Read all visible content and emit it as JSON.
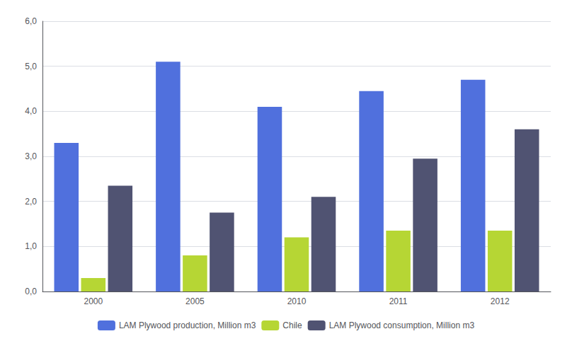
{
  "chart_data": {
    "type": "bar",
    "categories": [
      "2000",
      "2005",
      "2010",
      "2011",
      "2012"
    ],
    "series": [
      {
        "name": "LAM Plywood production, Million m3",
        "values": [
          3.3,
          5.1,
          4.1,
          4.45,
          4.7
        ]
      },
      {
        "name": "Chile",
        "values": [
          0.3,
          0.8,
          1.2,
          1.35,
          1.35
        ]
      },
      {
        "name": "LAM Plywood consumption, Million m3",
        "values": [
          2.35,
          1.75,
          2.1,
          2.95,
          3.6
        ]
      }
    ],
    "ylim": [
      0,
      6.0
    ],
    "yticks": [
      {
        "value": 0.0,
        "label": "0,0"
      },
      {
        "value": 1.0,
        "label": "1,0"
      },
      {
        "value": 2.0,
        "label": "2,0"
      },
      {
        "value": 3.0,
        "label": "3,0"
      },
      {
        "value": 4.0,
        "label": "4,0"
      },
      {
        "value": 5.0,
        "label": "5,0"
      },
      {
        "value": 6.0,
        "label": "6,0"
      }
    ],
    "grid": true,
    "legend": "bottom"
  }
}
